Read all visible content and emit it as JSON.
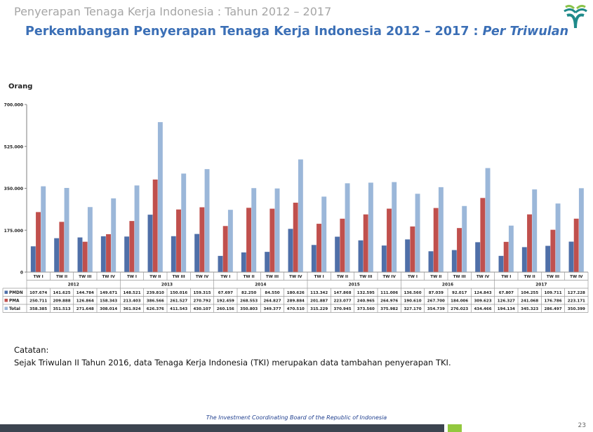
{
  "header": {
    "section": "Penyerapan Tenaga Kerja Indonesia : Tahun 2012 – 2017",
    "title_main": "Perkembangan Penyerapan Tenaga Kerja Indonesia 2012 – 2017 : ",
    "title_italic": "Per Triwulan"
  },
  "chart_data": {
    "type": "bar",
    "ylabel": "Orang",
    "ylim": [
      0,
      700000
    ],
    "yticks": [
      0,
      175000,
      350000,
      525000,
      700000
    ],
    "ytick_labels": [
      "0",
      "175.000",
      "350.000",
      "525.000",
      "700.000"
    ],
    "grid": false,
    "quarters": [
      "TW I",
      "TW II",
      "TW III",
      "TW IV",
      "TW I",
      "TW II",
      "TW III",
      "TW IV",
      "TW I",
      "TW II",
      "TW III",
      "TW IV",
      "TW I",
      "TW II",
      "TW III",
      "TW IV",
      "TW I",
      "TW II",
      "TW III",
      "TW IV",
      "TW I",
      "TW II",
      "TW III",
      "TW IV"
    ],
    "years": [
      "2012",
      "2013",
      "2014",
      "2015",
      "2016",
      "2017"
    ],
    "series": [
      {
        "name": "PMDN",
        "color": "#4f6fa8",
        "values": [
          107674,
          141625,
          144784,
          149671,
          148521,
          239810,
          150016,
          159315,
          67697,
          82250,
          84550,
          180626,
          113342,
          147868,
          132595,
          111006,
          136560,
          87039,
          92017,
          124843,
          67807,
          104255,
          109711,
          127228
        ],
        "labels": [
          "107.674",
          "141.625",
          "144.784",
          "149.671",
          "148.521",
          "239.810",
          "150.016",
          "159.315",
          "67.697",
          "82.250",
          "84.550",
          "180.626",
          "113.342",
          "147.868",
          "132.595",
          "111.006",
          "136.560",
          "87.039",
          "92.017",
          "124.843",
          "67.807",
          "104.255",
          "109.711",
          "127.228"
        ]
      },
      {
        "name": "PMA",
        "color": "#c0504d",
        "values": [
          250711,
          209888,
          126864,
          158343,
          213403,
          386566,
          261527,
          270792,
          192459,
          268553,
          264827,
          289884,
          201887,
          223077,
          240965,
          264976,
          190610,
          267700,
          184006,
          309623,
          126327,
          241068,
          176786,
          223171
        ],
        "labels": [
          "250.711",
          "209.888",
          "126.864",
          "158.343",
          "213.403",
          "386.566",
          "261.527",
          "270.792",
          "192.459",
          "268.553",
          "264.827",
          "289.884",
          "201.887",
          "223.077",
          "240.965",
          "264.976",
          "190.610",
          "267.700",
          "184.006",
          "309.623",
          "126.327",
          "241.068",
          "176.786",
          "223.171"
        ]
      },
      {
        "name": "Total",
        "color": "#9bb7d9",
        "values": [
          358385,
          351513,
          271648,
          308014,
          361924,
          626376,
          411543,
          430107,
          260156,
          350803,
          349377,
          470510,
          315229,
          370945,
          373560,
          375982,
          327170,
          354739,
          276023,
          434466,
          194134,
          345323,
          286497,
          350399
        ],
        "labels": [
          "358.385",
          "351.513",
          "271.648",
          "308.014",
          "361.924",
          "626.376",
          "411.543",
          "430.107",
          "260.156",
          "350.803",
          "349.377",
          "470.510",
          "315.229",
          "370.945",
          "373.560",
          "375.982",
          "327.170",
          "354.739",
          "276.023",
          "434.466",
          "194.134",
          "345.323",
          "286.497",
          "350.399"
        ]
      }
    ]
  },
  "notes": {
    "heading": "Catatan:",
    "text": "Sejak Triwulan II Tahun 2016, data Tenaga Kerja Indonesia (TKI) merupakan data tambahan penyerapan TKI."
  },
  "footer": {
    "org": "The Investment Coordinating Board of the Republic of Indonesia",
    "page": "23"
  },
  "colors": {
    "title": "#3b6fb6",
    "logo": "#1f8a8a",
    "bar": "#3c4450",
    "accent": "#92c83e"
  },
  "logo_icon": "bkpm-logo-icon"
}
